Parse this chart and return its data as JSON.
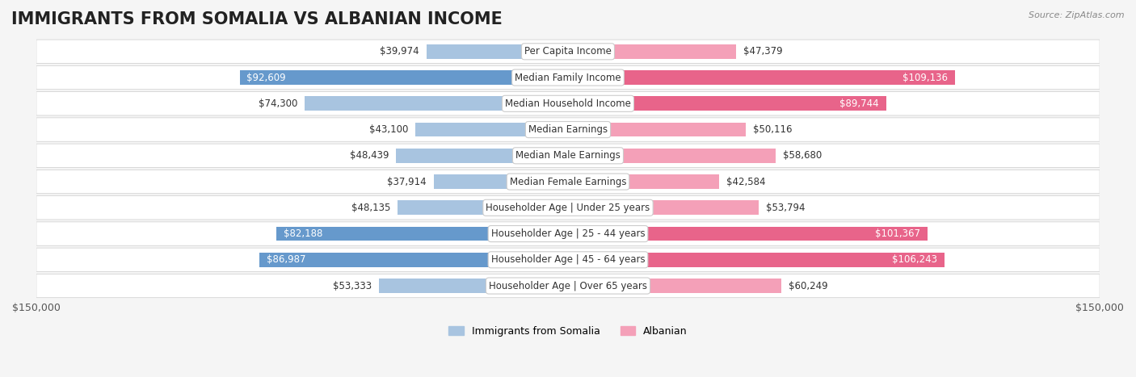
{
  "title": "IMMIGRANTS FROM SOMALIA VS ALBANIAN INCOME",
  "source": "Source: ZipAtlas.com",
  "categories": [
    "Per Capita Income",
    "Median Family Income",
    "Median Household Income",
    "Median Earnings",
    "Median Male Earnings",
    "Median Female Earnings",
    "Householder Age | Under 25 years",
    "Householder Age | 25 - 44 years",
    "Householder Age | 45 - 64 years",
    "Householder Age | Over 65 years"
  ],
  "somalia_values": [
    39974,
    92609,
    74300,
    43100,
    48439,
    37914,
    48135,
    82188,
    86987,
    53333
  ],
  "albanian_values": [
    47379,
    109136,
    89744,
    50116,
    58680,
    42584,
    53794,
    101367,
    106243,
    60249
  ],
  "somalia_labels": [
    "$39,974",
    "$92,609",
    "$74,300",
    "$43,100",
    "$48,439",
    "$37,914",
    "$48,135",
    "$82,188",
    "$86,987",
    "$53,333"
  ],
  "albanian_labels": [
    "$47,379",
    "$109,136",
    "$89,744",
    "$50,116",
    "$58,680",
    "$42,584",
    "$53,794",
    "$101,367",
    "$106,243",
    "$60,249"
  ],
  "somalia_color_light": "#a8c4e0",
  "somalia_color_dark": "#6699cc",
  "albanian_color_light": "#f4a0b8",
  "albanian_color_dark": "#e8648a",
  "max_value": 150000,
  "axis_label": "$150,000",
  "background_color": "#f5f5f5",
  "row_bg_color": "#ffffff",
  "title_fontsize": 15,
  "label_fontsize": 8.5,
  "category_fontsize": 8.5
}
